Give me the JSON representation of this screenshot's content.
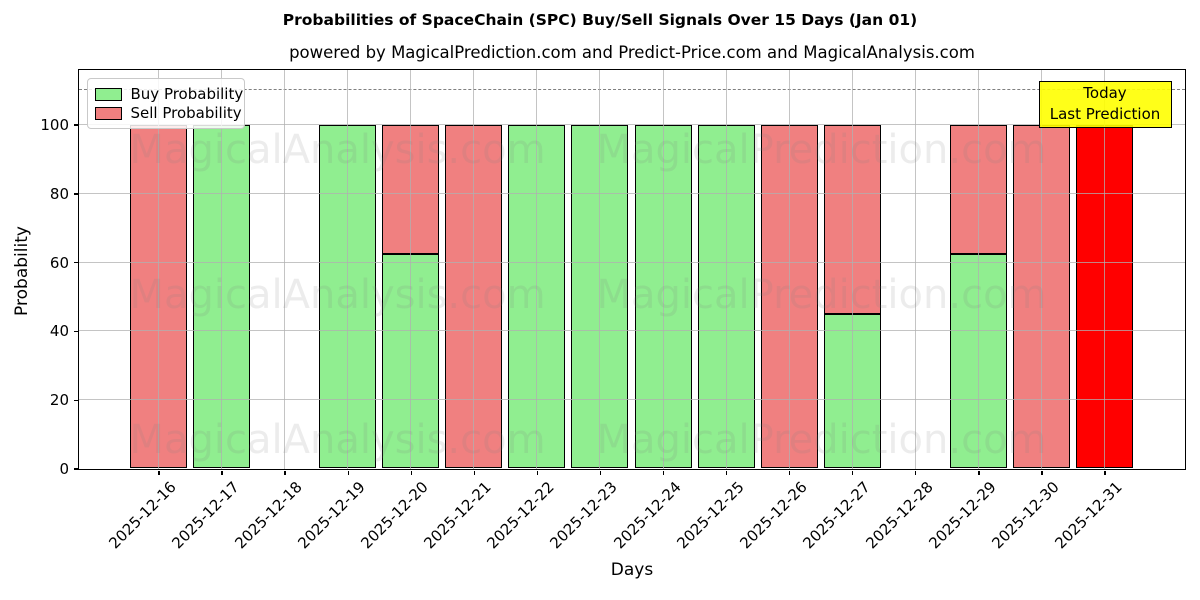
{
  "title": "Probabilities of SpaceChain (SPC) Buy/Sell Signals Over 15 Days (Jan 01)",
  "subtitle": "powered by MagicalPrediction.com and Predict-Price.com and MagicalAnalysis.com",
  "axes": {
    "xlabel": "Days",
    "ylabel": "Probability",
    "yticks": [
      0,
      20,
      40,
      60,
      80,
      100
    ],
    "ylim": [
      0,
      116
    ],
    "threshold_dashed_y": 110,
    "grid": "on"
  },
  "legend": {
    "position": "upper-left",
    "items": [
      {
        "label": "Buy Probability",
        "color": "#90ee90"
      },
      {
        "label": "Sell Probability",
        "color": "#f08080"
      }
    ]
  },
  "annotation_box": {
    "line1": "Today",
    "line2": "Last Prediction",
    "bg_color": "#ffff00"
  },
  "watermarks": {
    "left_text": "MagicalAnalysis.com",
    "right_text": "MagicalPrediction.com"
  },
  "colors": {
    "buy": "#90ee90",
    "sell": "#f08080",
    "last_day_sell": "#ff0000",
    "bar_edge": "#000000",
    "grid": "#b0b0b0",
    "dashed_line": "#7f7f7f"
  },
  "chart_data": {
    "type": "bar",
    "stacked": true,
    "categories": [
      "2025-12-16",
      "2025-12-17",
      "2025-12-18",
      "2025-12-19",
      "2025-12-20",
      "2025-12-21",
      "2025-12-22",
      "2025-12-23",
      "2025-12-24",
      "2025-12-25",
      "2025-12-26",
      "2025-12-27",
      "2025-12-28",
      "2025-12-29",
      "2025-12-30",
      "2025-12-31"
    ],
    "series": [
      {
        "name": "Buy Probability",
        "color": "#90ee90",
        "values": [
          0,
          100,
          0,
          100,
          62.5,
          0,
          100,
          100,
          100,
          100,
          0,
          45,
          0,
          62.5,
          0,
          0
        ]
      },
      {
        "name": "Sell Probability",
        "color": "#f08080",
        "values": [
          100,
          0,
          0,
          0,
          37.5,
          100,
          0,
          0,
          0,
          0,
          100,
          55,
          0,
          37.5,
          100,
          100
        ]
      }
    ],
    "highlight": {
      "category": "2025-12-31",
      "series": "Sell Probability",
      "color": "#ff0000"
    },
    "title": "Probabilities of SpaceChain (SPC) Buy/Sell Signals Over 15 Days (Jan 01)",
    "xlabel": "Days",
    "ylabel": "Probability",
    "ylim": [
      0,
      116
    ]
  }
}
